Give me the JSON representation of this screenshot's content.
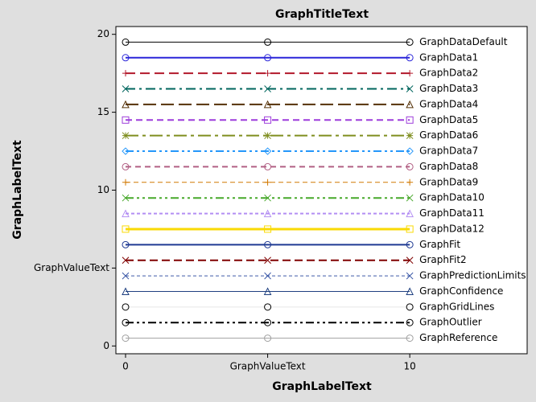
{
  "chart_data": {
    "type": "line",
    "title": "GraphTitleText",
    "x_label": "GraphLabelText",
    "y_label": "GraphLabelText",
    "x": [
      0,
      5,
      10
    ],
    "xlim": [
      -0.34,
      14.13
    ],
    "ylim": [
      -0.5,
      20.5
    ],
    "xticks": [
      0,
      {
        "value": 5,
        "label": "GraphValueText"
      },
      10
    ],
    "yticks": [
      0,
      {
        "value": 5,
        "label": "GraphValueText"
      },
      10,
      15,
      20
    ],
    "series": [
      {
        "name": "GraphDataDefault",
        "color": "#000000",
        "width": 1,
        "dash": "",
        "marker": "circle",
        "values": [
          19.5,
          19.5,
          19.5
        ]
      },
      {
        "name": "GraphData1",
        "color": "#2a25d9",
        "width": 2,
        "dash": "",
        "marker": "circle",
        "values": [
          18.5,
          18.5,
          18.5
        ]
      },
      {
        "name": "GraphData2",
        "color": "#b2182b",
        "width": 2,
        "dash": "12 6",
        "marker": "plus",
        "values": [
          17.5,
          17.5,
          17.5
        ]
      },
      {
        "name": "GraphData3",
        "color": "#01665e",
        "width": 2,
        "dash": "12 5 3 5",
        "marker": "x",
        "values": [
          16.5,
          16.5,
          16.5
        ]
      },
      {
        "name": "GraphData4",
        "color": "#543005",
        "width": 2,
        "dash": "16 6",
        "marker": "triangle",
        "values": [
          15.5,
          15.5,
          15.5
        ]
      },
      {
        "name": "GraphData5",
        "color": "#9d3cdb",
        "width": 2,
        "dash": "8 5",
        "marker": "square",
        "values": [
          14.5,
          14.5,
          14.5
        ]
      },
      {
        "name": "GraphData6",
        "color": "#7f8e1f",
        "width": 2,
        "dash": "16 5 4 5",
        "marker": "star",
        "values": [
          13.5,
          13.5,
          13.5
        ]
      },
      {
        "name": "GraphData7",
        "color": "#2597fa",
        "width": 2,
        "dash": "10 4 3 4 3 4",
        "marker": "diamond",
        "values": [
          12.5,
          12.5,
          12.5
        ]
      },
      {
        "name": "GraphData8",
        "color": "#b26084",
        "width": 2,
        "dash": "7 5",
        "marker": "circle",
        "values": [
          11.5,
          11.5,
          11.5
        ]
      },
      {
        "name": "GraphData9",
        "color": "#d17800",
        "width": 1,
        "dash": "6 4",
        "marker": "plus",
        "values": [
          10.5,
          10.5,
          10.5
        ]
      },
      {
        "name": "GraphData10",
        "color": "#47a82a",
        "width": 2,
        "dash": "10 4 3 4 3 4",
        "marker": "x",
        "values": [
          9.5,
          9.5,
          9.5
        ]
      },
      {
        "name": "GraphData11",
        "color": "#b38ef3",
        "width": 2,
        "dash": "4 3",
        "marker": "triangle",
        "values": [
          8.5,
          8.5,
          8.5
        ]
      },
      {
        "name": "GraphData12",
        "color": "#f9da04",
        "width": 3,
        "dash": "",
        "marker": "square",
        "values": [
          7.5,
          7.5,
          7.5
        ]
      },
      {
        "name": "GraphFit",
        "color": "#1f3a93",
        "width": 2,
        "dash": "",
        "marker": "circle",
        "values": [
          6.5,
          6.5,
          6.5
        ]
      },
      {
        "name": "GraphFit2",
        "color": "#800000",
        "width": 2,
        "dash": "10 5",
        "marker": "x",
        "values": [
          5.5,
          5.5,
          5.5
        ]
      },
      {
        "name": "GraphPredictionLimits",
        "color": "#3d5aa8",
        "width": 1,
        "dash": "4 3",
        "marker": "x",
        "values": [
          4.5,
          4.5,
          4.5
        ]
      },
      {
        "name": "GraphConfidence",
        "color": "#1f4080",
        "width": 1,
        "dash": "",
        "marker": "triangle",
        "values": [
          3.5,
          3.5,
          3.5
        ]
      },
      {
        "name": "GraphGridLines",
        "color": "#e6e6e6",
        "width": 1,
        "dash": "",
        "marker": "circle",
        "values": [
          2.5,
          2.5,
          2.5
        ]
      },
      {
        "name": "GraphOutlier",
        "color": "#000000",
        "width": 2,
        "dash": "10 4 3 4 3 4",
        "marker": "circle",
        "values": [
          1.5,
          1.5,
          1.5
        ]
      },
      {
        "name": "GraphReference",
        "color": "#a0a0a0",
        "width": 1,
        "dash": "",
        "marker": "circle",
        "values": [
          0.5,
          0.5,
          0.5
        ]
      }
    ]
  }
}
